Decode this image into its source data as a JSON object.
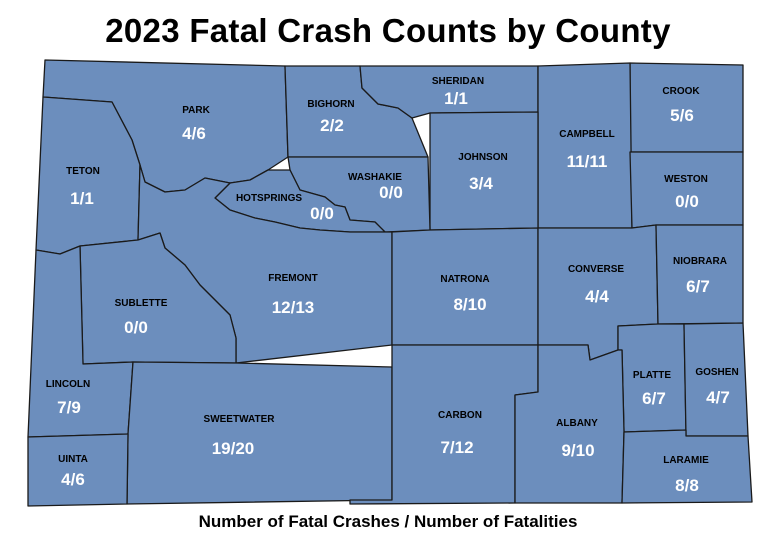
{
  "title": "2023 Fatal Crash Counts by County",
  "caption": "Number of Fatal Crashes / Number of Fatalities",
  "colors": {
    "county_fill": "#6c8ebd",
    "border": "#1a1a1a",
    "count_text": "#ffffff",
    "name_text": "#000000"
  },
  "counties": [
    {
      "id": "park",
      "name": "PARK",
      "counts": "4/6"
    },
    {
      "id": "bighorn",
      "name": "BIGHORN",
      "counts": "2/2"
    },
    {
      "id": "sheridan",
      "name": "SHERIDAN",
      "counts": "1/1"
    },
    {
      "id": "crook",
      "name": "CROOK",
      "counts": "5/6"
    },
    {
      "id": "teton",
      "name": "TETON",
      "counts": "1/1"
    },
    {
      "id": "campbell",
      "name": "CAMPBELL",
      "counts": "11/11"
    },
    {
      "id": "johnson",
      "name": "JOHNSON",
      "counts": "3/4"
    },
    {
      "id": "washakie",
      "name": "WASHAKIE",
      "counts": "0/0"
    },
    {
      "id": "weston",
      "name": "WESTON",
      "counts": "0/0"
    },
    {
      "id": "hotsprings",
      "name": "HOTSPRINGS",
      "counts": "0/0"
    },
    {
      "id": "fremont",
      "name": "FREMONT",
      "counts": "12/13"
    },
    {
      "id": "natrona",
      "name": "NATRONA",
      "counts": "8/10"
    },
    {
      "id": "converse",
      "name": "CONVERSE",
      "counts": "4/4"
    },
    {
      "id": "niobrara",
      "name": "NIOBRARA",
      "counts": "6/7"
    },
    {
      "id": "sublette",
      "name": "SUBLETTE",
      "counts": "0/0"
    },
    {
      "id": "lincoln",
      "name": "LINCOLN",
      "counts": "7/9"
    },
    {
      "id": "platte",
      "name": "PLATTE",
      "counts": "6/7"
    },
    {
      "id": "goshen",
      "name": "GOSHEN",
      "counts": "4/7"
    },
    {
      "id": "sweetwater",
      "name": "SWEETWATER",
      "counts": "19/20"
    },
    {
      "id": "carbon",
      "name": "CARBON",
      "counts": "7/12"
    },
    {
      "id": "albany",
      "name": "ALBANY",
      "counts": "9/10"
    },
    {
      "id": "uinta",
      "name": "UINTA",
      "counts": "4/6"
    },
    {
      "id": "laramie",
      "name": "LARAMIE",
      "counts": "8/8"
    }
  ]
}
